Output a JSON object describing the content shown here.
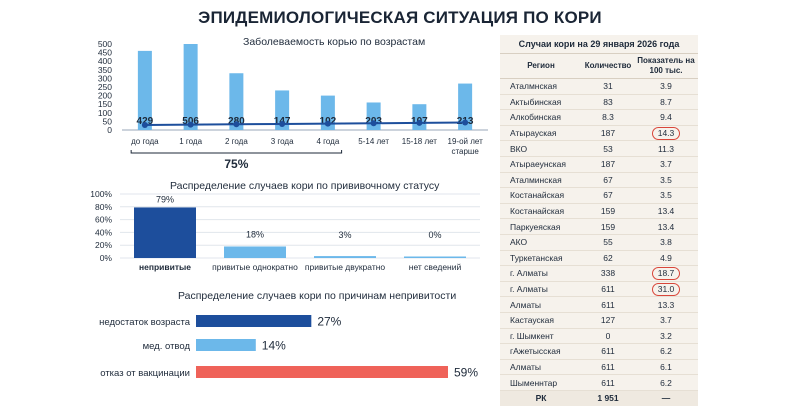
{
  "page_title": "ЭПИДЕМИОЛОГИЧЕСКАЯ СИТУАЦИЯ ПО КОРИ",
  "colors": {
    "light_bar": "#6cb8ea",
    "dark_bar": "#1d4e9c",
    "line": "#1d4e9c",
    "red_bar": "#ef6259",
    "circle": "#d9463a"
  },
  "chart_data": [
    {
      "type": "bar",
      "title": "Заболеваемость корью по возрастам",
      "categories": [
        "до года",
        "1 года",
        "2 года",
        "3 года",
        "4 года",
        "5-14 лет",
        "15-18 лет",
        "19-ой лет старше"
      ],
      "values": [
        460,
        500,
        330,
        230,
        200,
        160,
        150,
        270
      ],
      "line_values": [
        429,
        506,
        280,
        147,
        102,
        203,
        107,
        213
      ],
      "ylim": [
        0,
        500
      ],
      "yticks": [
        0,
        50,
        100,
        150,
        200,
        250,
        300,
        350,
        400,
        450,
        500
      ],
      "bracket_label": "75%",
      "grid": false
    },
    {
      "type": "bar",
      "title": "Распределение случаев кори по прививочному статусу",
      "categories": [
        "непривитые",
        "привитые однократно",
        "привитые двукратно",
        "нет сведений"
      ],
      "values": [
        79,
        18,
        3,
        0
      ],
      "value_labels": [
        "79%",
        "18%",
        "3%",
        "0%"
      ],
      "ylim": [
        0,
        100
      ],
      "yticks": [
        "0%",
        "20%",
        "40%",
        "60%",
        "80%",
        "100%"
      ],
      "grid": true
    },
    {
      "type": "bar",
      "orientation": "horizontal",
      "title": "Распределение случаев кори по причинам непривитости",
      "categories": [
        "недостаток возраста",
        "мед. отвод",
        "отказ от вакцинации"
      ],
      "values": [
        27,
        14,
        59
      ],
      "value_labels": [
        "27%",
        "14%",
        "59%"
      ],
      "xlim": [
        0,
        59
      ]
    }
  ],
  "table": {
    "title": "Случаи кори на 29 января 2026 года",
    "headers": [
      "Регион",
      "Количество",
      "Показатель на 100 тыс."
    ],
    "rows": [
      [
        "Аталмнская",
        "31",
        "3.9"
      ],
      [
        "Актыбинская",
        "83",
        "8.7"
      ],
      [
        "Алкобинская",
        "8.3",
        "9.4"
      ],
      [
        "Атырауская",
        "187",
        "14.3"
      ],
      [
        "ВКО",
        "53",
        "11.3"
      ],
      [
        "Атыраеунская",
        "187",
        "3.7"
      ],
      [
        "Аталминская",
        "67",
        "3.5"
      ],
      [
        "Костанайская",
        "67",
        "3.5"
      ],
      [
        "Костанайская",
        "159",
        "13.4"
      ],
      [
        "Паркуеяская",
        "159",
        "13.4"
      ],
      [
        "АКО",
        "55",
        "3.8"
      ],
      [
        "Туркетанская",
        "62",
        "4.9"
      ],
      [
        "г. Алматы",
        "338",
        "18.7"
      ],
      [
        "г. Алматы",
        "611",
        "31.0"
      ],
      [
        "Алматы",
        "611",
        "13.3"
      ],
      [
        "Кастауская",
        "127",
        "3.7"
      ],
      [
        "г. Шымкент",
        "0",
        "3.2"
      ],
      [
        "гАжетысская",
        "611",
        "6.2"
      ],
      [
        "Алматы",
        "611",
        "6.1"
      ],
      [
        "Шыменнтар",
        "611",
        "6.2"
      ]
    ],
    "circled_rows": [
      3,
      12,
      13
    ],
    "total": [
      "РК",
      "1 951",
      "—"
    ]
  }
}
